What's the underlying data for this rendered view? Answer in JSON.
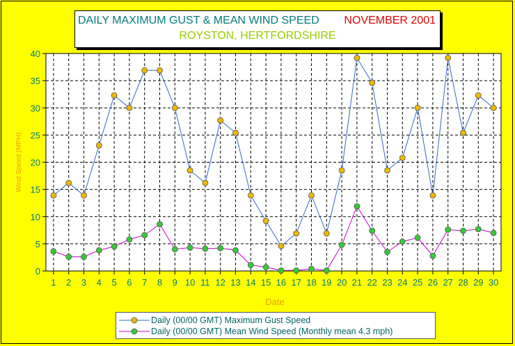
{
  "title": {
    "main": "DAILY MAXIMUM GUST & MEAN WIND SPEED",
    "date": "NOVEMBER 2001",
    "location": "ROYSTON, HERTFORDSHIRE"
  },
  "colors": {
    "background": "#ffff00",
    "axis_text": "#007b7b",
    "axis_label": "#e8a200",
    "gust_line": "#3366cc",
    "gust_marker": "#f0b800",
    "mean_line": "#cc00cc",
    "mean_marker": "#33cc33"
  },
  "chart_data": {
    "type": "line",
    "xlabel": "Date",
    "ylabel": "Wind Speed (MPH)",
    "ylim": [
      0,
      40
    ],
    "yticks": [
      0,
      5,
      10,
      15,
      20,
      25,
      30,
      35,
      40
    ],
    "grid": true,
    "legend_placement": "bottom",
    "categories": [
      "1",
      "2",
      "3",
      "4",
      "5",
      "6",
      "7",
      "8",
      "9",
      "10",
      "11",
      "12",
      "13",
      "14",
      "15",
      "16",
      "17",
      "18",
      "19",
      "20",
      "21",
      "22",
      "23",
      "24",
      "25",
      "26",
      "27",
      "28",
      "29",
      "30"
    ],
    "series": [
      {
        "name": "Daily (00/00 GMT) Maximum Gust Speed",
        "values": [
          13.9,
          16.2,
          13.9,
          23.1,
          32.3,
          30.0,
          36.9,
          36.9,
          30.0,
          18.5,
          16.2,
          27.7,
          25.4,
          13.9,
          9.2,
          4.6,
          6.9,
          13.9,
          6.9,
          18.5,
          39.2,
          34.6,
          18.5,
          20.8,
          30.0,
          13.9,
          39.2,
          25.4,
          32.3,
          30.0
        ]
      },
      {
        "name": "Daily (00/00 GMT) Mean Wind Speed (Monthly mean 4.3 mph)",
        "values": [
          3.6,
          2.6,
          2.6,
          3.8,
          4.5,
          5.8,
          6.6,
          8.6,
          4.0,
          4.3,
          4.1,
          4.2,
          3.8,
          1.1,
          0.7,
          0.1,
          0.1,
          0.4,
          0.1,
          4.8,
          11.9,
          7.4,
          3.5,
          5.4,
          6.1,
          2.8,
          7.6,
          7.4,
          7.7,
          7.0
        ]
      }
    ]
  }
}
